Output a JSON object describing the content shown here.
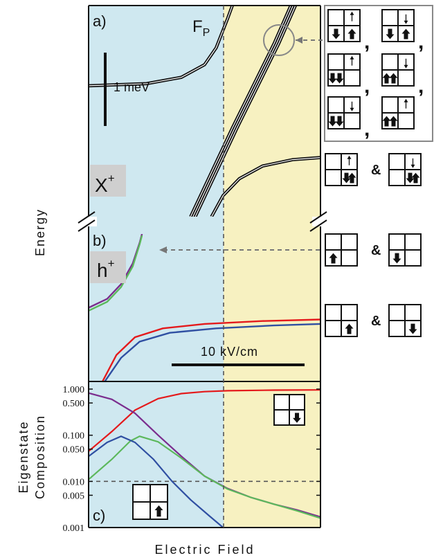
{
  "chart_data": [
    {
      "panel": "a)",
      "type": "line",
      "ylabel": "Energy",
      "marker_label": "F",
      "marker_sub": "P",
      "scale_bar_label": "1 meV",
      "badge": {
        "base": "X",
        "sup": "+"
      },
      "series": [
        {
          "color": "#111111",
          "points": [
            [
              0,
              0.62
            ],
            [
              0.25,
              0.63
            ],
            [
              0.4,
              0.66
            ],
            [
              0.5,
              0.72
            ],
            [
              0.55,
              0.8
            ],
            [
              0.6,
              0.94
            ],
            [
              0.62,
              1.0
            ]
          ]
        },
        {
          "color": "#111111",
          "points": [
            [
              0.44,
              0.0
            ],
            [
              0.62,
              0.42
            ],
            [
              0.8,
              0.82
            ],
            [
              0.86,
              0.97
            ],
            [
              0.88,
              1.02
            ]
          ]
        },
        {
          "color": "#111111",
          "points": [
            [
              0.45,
              0.0
            ],
            [
              0.63,
              0.42
            ],
            [
              0.81,
              0.82
            ],
            [
              0.87,
              0.97
            ],
            [
              0.89,
              1.02
            ]
          ]
        },
        {
          "color": "#111111",
          "points": [
            [
              0.46,
              0.0
            ],
            [
              0.64,
              0.42
            ],
            [
              0.82,
              0.82
            ],
            [
              0.88,
              0.97
            ],
            [
              0.9,
              1.02
            ]
          ]
        },
        {
          "color": "#111111",
          "points": [
            [
              0.53,
              0.0
            ],
            [
              0.58,
              0.1
            ],
            [
              0.65,
              0.18
            ],
            [
              0.75,
              0.24
            ],
            [
              0.88,
              0.27
            ],
            [
              1.0,
              0.28
            ]
          ]
        }
      ]
    },
    {
      "panel": "b)",
      "type": "line",
      "badge": {
        "base": "h",
        "sup": "+"
      },
      "scale_bar_label": "10 kV/cm",
      "series": [
        {
          "color": "#7b2d8e",
          "points": [
            [
              0,
              0.5
            ],
            [
              0.08,
              0.56
            ],
            [
              0.14,
              0.66
            ],
            [
              0.19,
              0.8
            ],
            [
              0.22,
              0.94
            ],
            [
              0.23,
              1.0
            ]
          ]
        },
        {
          "color": "#5cb85c",
          "points": [
            [
              0,
              0.48
            ],
            [
              0.08,
              0.54
            ],
            [
              0.14,
              0.64
            ],
            [
              0.19,
              0.78
            ],
            [
              0.22,
              0.93
            ],
            [
              0.23,
              0.99
            ]
          ]
        },
        {
          "color": "#e41a1c",
          "points": [
            [
              0.06,
              0.0
            ],
            [
              0.12,
              0.18
            ],
            [
              0.2,
              0.3
            ],
            [
              0.32,
              0.36
            ],
            [
              0.5,
              0.39
            ],
            [
              0.75,
              0.41
            ],
            [
              1.0,
              0.42
            ]
          ]
        },
        {
          "color": "#2f4fa2",
          "points": [
            [
              0.07,
              0.0
            ],
            [
              0.14,
              0.16
            ],
            [
              0.22,
              0.27
            ],
            [
              0.35,
              0.33
            ],
            [
              0.55,
              0.36
            ],
            [
              0.8,
              0.38
            ],
            [
              1.0,
              0.39
            ]
          ]
        }
      ]
    },
    {
      "panel": "c)",
      "type": "line",
      "ylabel_lines": [
        "Eigenstate",
        "Composition"
      ],
      "xlabel": "Electric Field",
      "yscale": "log",
      "ylim": [
        0.001,
        1.0
      ],
      "yticks": [
        {
          "v": 1.0,
          "t": "1.000"
        },
        {
          "v": 0.5,
          "t": "0.500"
        },
        {
          "v": 0.1,
          "t": "0.100"
        },
        {
          "v": 0.05,
          "t": "0.050"
        },
        {
          "v": 0.01,
          "t": "0.010"
        },
        {
          "v": 0.005,
          "t": "0.005"
        },
        {
          "v": 0.001,
          "t": "0.001"
        }
      ],
      "threshold": 0.01,
      "series": [
        {
          "color": "#e41a1c",
          "points": [
            [
              0,
              0.045
            ],
            [
              0.1,
              0.12
            ],
            [
              0.2,
              0.35
            ],
            [
              0.3,
              0.62
            ],
            [
              0.4,
              0.8
            ],
            [
              0.5,
              0.88
            ],
            [
              0.6,
              0.92
            ],
            [
              0.8,
              0.95
            ],
            [
              1.0,
              0.96
            ]
          ]
        },
        {
          "color": "#7b2d8e",
          "points": [
            [
              0,
              0.82
            ],
            [
              0.1,
              0.6
            ],
            [
              0.2,
              0.3
            ],
            [
              0.3,
              0.1
            ],
            [
              0.4,
              0.035
            ],
            [
              0.5,
              0.013
            ],
            [
              0.6,
              0.007
            ],
            [
              0.7,
              0.0045
            ],
            [
              0.8,
              0.0032
            ],
            [
              0.9,
              0.0024
            ],
            [
              1.0,
              0.0017
            ]
          ]
        },
        {
          "color": "#5cb85c",
          "points": [
            [
              0,
              0.011
            ],
            [
              0.1,
              0.03
            ],
            [
              0.18,
              0.075
            ],
            [
              0.22,
              0.095
            ],
            [
              0.3,
              0.072
            ],
            [
              0.4,
              0.032
            ],
            [
              0.5,
              0.013
            ],
            [
              0.6,
              0.0068
            ],
            [
              0.7,
              0.0045
            ],
            [
              0.8,
              0.0032
            ],
            [
              0.9,
              0.0023
            ],
            [
              1.0,
              0.0016
            ]
          ]
        },
        {
          "color": "#2f4fa2",
          "points": [
            [
              0,
              0.035
            ],
            [
              0.08,
              0.07
            ],
            [
              0.14,
              0.095
            ],
            [
              0.2,
              0.07
            ],
            [
              0.28,
              0.03
            ],
            [
              0.36,
              0.01
            ],
            [
              0.44,
              0.004
            ],
            [
              0.52,
              0.0018
            ],
            [
              0.58,
              0.001
            ]
          ]
        }
      ]
    }
  ],
  "legend": {
    "amp": "&",
    "comma": ","
  },
  "colors": {
    "field_low_bg": "#cfe8f0",
    "field_high_bg": "#f7f1c1",
    "red": "#e41a1c",
    "blue": "#2f4fa2",
    "purple": "#7b2d8e",
    "green": "#5cb85c"
  }
}
